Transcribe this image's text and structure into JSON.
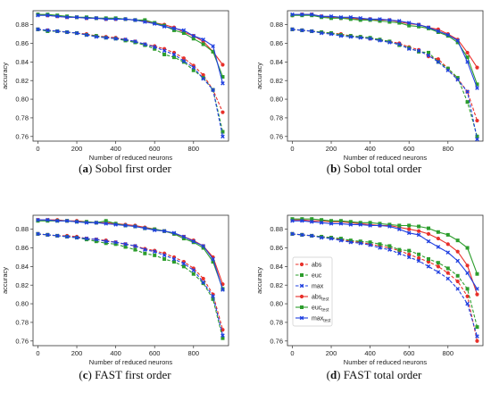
{
  "figure": {
    "panels": [
      {
        "letter": "(a)",
        "caption": "Sobol first order"
      },
      {
        "letter": "(b)",
        "caption": "Sobol total order"
      },
      {
        "letter": "(c)",
        "caption": "FAST first order"
      },
      {
        "letter": "(d)",
        "caption": "FAST total order"
      }
    ],
    "legend": [
      {
        "label": "abs",
        "sub": "",
        "color": "#e8302a",
        "dashed": true
      },
      {
        "label": "euc",
        "sub": "",
        "color": "#2c9d2c",
        "dashed": true
      },
      {
        "label": "max",
        "sub": "",
        "color": "#1f3fe0",
        "dashed": true
      },
      {
        "label": "abs",
        "sub": "test",
        "color": "#e8302a",
        "dashed": false
      },
      {
        "label": "euc",
        "sub": "test",
        "color": "#2c9d2c",
        "dashed": false
      },
      {
        "label": "max",
        "sub": "test",
        "color": "#1f3fe0",
        "dashed": false
      }
    ],
    "colors": {
      "abs": "#e8302a",
      "euc": "#2c9d2c",
      "max": "#1f3fe0"
    }
  },
  "chart_data": [
    {
      "type": "line",
      "caption": "Sobol first order",
      "xlabel": "Number of reduced neurons",
      "ylabel": "accuracy",
      "xlim": [
        -25,
        980
      ],
      "ylim": [
        0.755,
        0.895
      ],
      "xticks": [
        0,
        200,
        400,
        600,
        800
      ],
      "yticks": [
        0.76,
        0.78,
        0.8,
        0.82,
        0.84,
        0.86,
        0.88
      ],
      "x": [
        0,
        50,
        100,
        150,
        200,
        250,
        300,
        350,
        400,
        450,
        500,
        550,
        600,
        650,
        700,
        750,
        800,
        850,
        900,
        950
      ],
      "series": [
        {
          "name": "abs",
          "style": "dashed",
          "color": "#e8302a",
          "values": [
            0.875,
            0.874,
            0.873,
            0.872,
            0.871,
            0.87,
            0.868,
            0.867,
            0.866,
            0.864,
            0.862,
            0.859,
            0.857,
            0.854,
            0.85,
            0.844,
            0.836,
            0.826,
            0.81,
            0.786
          ]
        },
        {
          "name": "euc",
          "style": "dashed",
          "color": "#2c9d2c",
          "values": [
            0.875,
            0.873,
            0.873,
            0.872,
            0.871,
            0.869,
            0.868,
            0.866,
            0.865,
            0.863,
            0.861,
            0.858,
            0.854,
            0.848,
            0.845,
            0.84,
            0.831,
            0.823,
            0.81,
            0.765
          ]
        },
        {
          "name": "max",
          "style": "dashed",
          "color": "#1f3fe0",
          "values": [
            0.875,
            0.874,
            0.873,
            0.872,
            0.871,
            0.869,
            0.867,
            0.866,
            0.865,
            0.864,
            0.862,
            0.859,
            0.856,
            0.852,
            0.848,
            0.841,
            0.834,
            0.822,
            0.81,
            0.76
          ]
        },
        {
          "name": "abs_test",
          "style": "solid",
          "color": "#e8302a",
          "values": [
            0.891,
            0.89,
            0.889,
            0.888,
            0.888,
            0.887,
            0.887,
            0.886,
            0.886,
            0.886,
            0.885,
            0.884,
            0.882,
            0.88,
            0.877,
            0.872,
            0.868,
            0.862,
            0.851,
            0.837
          ]
        },
        {
          "name": "euc_test",
          "style": "solid",
          "color": "#2c9d2c",
          "values": [
            0.891,
            0.891,
            0.89,
            0.889,
            0.888,
            0.888,
            0.887,
            0.887,
            0.887,
            0.886,
            0.885,
            0.885,
            0.882,
            0.879,
            0.874,
            0.871,
            0.865,
            0.859,
            0.851,
            0.824
          ]
        },
        {
          "name": "max_test",
          "style": "solid",
          "color": "#1f3fe0",
          "values": [
            0.89,
            0.89,
            0.889,
            0.888,
            0.888,
            0.887,
            0.887,
            0.886,
            0.886,
            0.886,
            0.885,
            0.883,
            0.881,
            0.878,
            0.876,
            0.874,
            0.868,
            0.864,
            0.857,
            0.817
          ]
        }
      ]
    },
    {
      "type": "line",
      "caption": "Sobol total order",
      "xlabel": "Number of reduced neurons",
      "ylabel": "accuracy",
      "xlim": [
        -25,
        980
      ],
      "ylim": [
        0.755,
        0.895
      ],
      "xticks": [
        0,
        200,
        400,
        600,
        800
      ],
      "yticks": [
        0.76,
        0.78,
        0.8,
        0.82,
        0.84,
        0.86,
        0.88
      ],
      "x": [
        0,
        50,
        100,
        150,
        200,
        250,
        300,
        350,
        400,
        450,
        500,
        550,
        600,
        650,
        700,
        750,
        800,
        850,
        900,
        950
      ],
      "series": [
        {
          "name": "abs",
          "style": "dashed",
          "color": "#e8302a",
          "values": [
            0.875,
            0.874,
            0.873,
            0.872,
            0.871,
            0.87,
            0.868,
            0.867,
            0.865,
            0.864,
            0.862,
            0.86,
            0.856,
            0.853,
            0.846,
            0.843,
            0.833,
            0.822,
            0.808,
            0.777
          ]
        },
        {
          "name": "euc",
          "style": "dashed",
          "color": "#2c9d2c",
          "values": [
            0.875,
            0.874,
            0.873,
            0.872,
            0.871,
            0.869,
            0.868,
            0.867,
            0.866,
            0.864,
            0.862,
            0.858,
            0.855,
            0.851,
            0.85,
            0.84,
            0.833,
            0.823,
            0.797,
            0.76
          ]
        },
        {
          "name": "max",
          "style": "dashed",
          "color": "#1f3fe0",
          "values": [
            0.875,
            0.874,
            0.873,
            0.871,
            0.87,
            0.868,
            0.867,
            0.866,
            0.865,
            0.863,
            0.861,
            0.859,
            0.854,
            0.852,
            0.847,
            0.84,
            0.831,
            0.821,
            0.808,
            0.757
          ]
        },
        {
          "name": "abs_test",
          "style": "solid",
          "color": "#e8302a",
          "values": [
            0.89,
            0.891,
            0.891,
            0.889,
            0.888,
            0.887,
            0.887,
            0.886,
            0.886,
            0.885,
            0.885,
            0.883,
            0.881,
            0.88,
            0.877,
            0.875,
            0.87,
            0.864,
            0.85,
            0.834
          ]
        },
        {
          "name": "euc_test",
          "style": "solid",
          "color": "#2c9d2c",
          "values": [
            0.89,
            0.89,
            0.89,
            0.888,
            0.887,
            0.887,
            0.886,
            0.885,
            0.885,
            0.884,
            0.883,
            0.882,
            0.879,
            0.878,
            0.876,
            0.872,
            0.868,
            0.861,
            0.845,
            0.816
          ]
        },
        {
          "name": "max_test",
          "style": "solid",
          "color": "#1f3fe0",
          "values": [
            0.891,
            0.891,
            0.891,
            0.889,
            0.889,
            0.888,
            0.888,
            0.887,
            0.886,
            0.886,
            0.885,
            0.884,
            0.882,
            0.88,
            0.877,
            0.873,
            0.869,
            0.863,
            0.84,
            0.812
          ]
        }
      ]
    },
    {
      "type": "line",
      "caption": "FAST first order",
      "xlabel": "Number of reduced neurons",
      "ylabel": "accuracy",
      "xlim": [
        -25,
        980
      ],
      "ylim": [
        0.755,
        0.895
      ],
      "xticks": [
        0,
        200,
        400,
        600,
        800
      ],
      "yticks": [
        0.76,
        0.78,
        0.8,
        0.82,
        0.84,
        0.86,
        0.88
      ],
      "x": [
        0,
        50,
        100,
        150,
        200,
        250,
        300,
        350,
        400,
        450,
        500,
        550,
        600,
        650,
        700,
        750,
        800,
        850,
        900,
        950
      ],
      "series": [
        {
          "name": "abs",
          "style": "dashed",
          "color": "#e8302a",
          "values": [
            0.875,
            0.874,
            0.873,
            0.873,
            0.872,
            0.87,
            0.869,
            0.868,
            0.866,
            0.864,
            0.862,
            0.859,
            0.857,
            0.854,
            0.85,
            0.845,
            0.838,
            0.827,
            0.81,
            0.772
          ]
        },
        {
          "name": "euc",
          "style": "dashed",
          "color": "#2c9d2c",
          "values": [
            0.875,
            0.874,
            0.873,
            0.872,
            0.871,
            0.869,
            0.867,
            0.865,
            0.864,
            0.861,
            0.858,
            0.854,
            0.852,
            0.848,
            0.845,
            0.84,
            0.832,
            0.822,
            0.805,
            0.763
          ]
        },
        {
          "name": "max",
          "style": "dashed",
          "color": "#1f3fe0",
          "values": [
            0.875,
            0.874,
            0.873,
            0.872,
            0.871,
            0.87,
            0.869,
            0.867,
            0.866,
            0.864,
            0.862,
            0.858,
            0.856,
            0.852,
            0.848,
            0.843,
            0.836,
            0.823,
            0.808,
            0.766
          ]
        },
        {
          "name": "abs_test",
          "style": "solid",
          "color": "#e8302a",
          "values": [
            0.89,
            0.89,
            0.89,
            0.889,
            0.889,
            0.888,
            0.887,
            0.887,
            0.886,
            0.885,
            0.884,
            0.882,
            0.88,
            0.878,
            0.875,
            0.872,
            0.868,
            0.862,
            0.85,
            0.821
          ]
        },
        {
          "name": "euc_test",
          "style": "solid",
          "color": "#2c9d2c",
          "values": [
            0.889,
            0.889,
            0.889,
            0.889,
            0.888,
            0.888,
            0.887,
            0.889,
            0.886,
            0.884,
            0.883,
            0.881,
            0.88,
            0.878,
            0.875,
            0.87,
            0.866,
            0.86,
            0.845,
            0.816
          ]
        },
        {
          "name": "max_test",
          "style": "solid",
          "color": "#1f3fe0",
          "values": [
            0.89,
            0.89,
            0.889,
            0.889,
            0.888,
            0.887,
            0.887,
            0.886,
            0.885,
            0.884,
            0.883,
            0.881,
            0.879,
            0.878,
            0.876,
            0.872,
            0.867,
            0.862,
            0.848,
            0.815
          ]
        }
      ]
    },
    {
      "type": "line",
      "caption": "FAST total order",
      "xlabel": "Number of reduced neurons",
      "ylabel": "accuracy",
      "xlim": [
        -25,
        980
      ],
      "ylim": [
        0.755,
        0.895
      ],
      "xticks": [
        0,
        200,
        400,
        600,
        800
      ],
      "yticks": [
        0.76,
        0.78,
        0.8,
        0.82,
        0.84,
        0.86,
        0.88
      ],
      "legend": "left-lower",
      "x": [
        0,
        50,
        100,
        150,
        200,
        250,
        300,
        350,
        400,
        450,
        500,
        550,
        600,
        650,
        700,
        750,
        800,
        850,
        900,
        950
      ],
      "series": [
        {
          "name": "abs",
          "style": "dashed",
          "color": "#e8302a",
          "values": [
            0.875,
            0.874,
            0.873,
            0.872,
            0.871,
            0.869,
            0.867,
            0.866,
            0.864,
            0.862,
            0.86,
            0.857,
            0.853,
            0.849,
            0.845,
            0.84,
            0.833,
            0.824,
            0.808,
            0.76
          ]
        },
        {
          "name": "euc",
          "style": "dashed",
          "color": "#2c9d2c",
          "values": [
            0.875,
            0.874,
            0.873,
            0.872,
            0.871,
            0.87,
            0.868,
            0.867,
            0.866,
            0.864,
            0.862,
            0.858,
            0.857,
            0.853,
            0.848,
            0.844,
            0.838,
            0.83,
            0.816,
            0.775
          ]
        },
        {
          "name": "max",
          "style": "dashed",
          "color": "#1f3fe0",
          "values": [
            0.875,
            0.874,
            0.873,
            0.871,
            0.87,
            0.868,
            0.866,
            0.865,
            0.863,
            0.86,
            0.858,
            0.854,
            0.85,
            0.846,
            0.84,
            0.834,
            0.827,
            0.816,
            0.8,
            0.765
          ]
        },
        {
          "name": "abs_test",
          "style": "solid",
          "color": "#e8302a",
          "values": [
            0.89,
            0.89,
            0.889,
            0.889,
            0.888,
            0.888,
            0.887,
            0.886,
            0.885,
            0.884,
            0.884,
            0.882,
            0.88,
            0.878,
            0.875,
            0.87,
            0.864,
            0.856,
            0.841,
            0.81
          ]
        },
        {
          "name": "euc_test",
          "style": "solid",
          "color": "#2c9d2c",
          "values": [
            0.891,
            0.891,
            0.891,
            0.89,
            0.889,
            0.889,
            0.888,
            0.887,
            0.887,
            0.886,
            0.885,
            0.884,
            0.884,
            0.883,
            0.881,
            0.877,
            0.874,
            0.868,
            0.86,
            0.832
          ]
        },
        {
          "name": "max_test",
          "style": "solid",
          "color": "#1f3fe0",
          "values": [
            0.889,
            0.889,
            0.888,
            0.887,
            0.886,
            0.886,
            0.885,
            0.885,
            0.884,
            0.884,
            0.883,
            0.88,
            0.876,
            0.874,
            0.867,
            0.861,
            0.855,
            0.846,
            0.833,
            0.816
          ]
        }
      ]
    }
  ]
}
